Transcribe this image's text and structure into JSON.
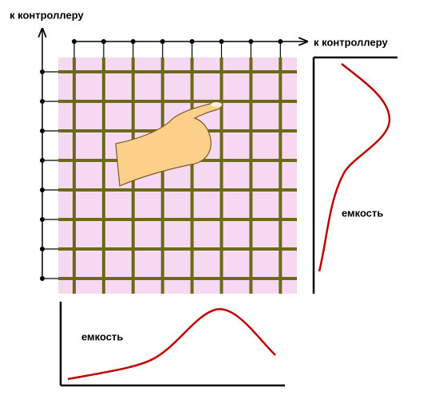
{
  "row_bus_label": "к контроллеру",
  "column_bus_label": "к контроллеру",
  "vertical_profile_label": "емкость",
  "horizontal_profile_label": "емкость"
}
